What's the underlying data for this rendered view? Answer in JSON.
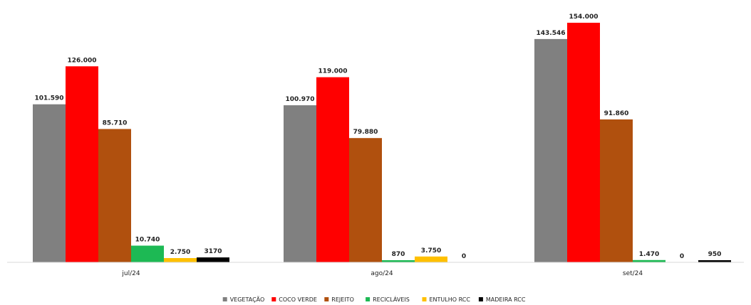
{
  "chart_data": {
    "type": "bar",
    "categories": [
      "jul/24",
      "ago/24",
      "set/24"
    ],
    "series": [
      {
        "name": "VEGETAÇÃO",
        "color": "#808080",
        "values": [
          101590,
          100970,
          143546
        ],
        "labels": [
          "101.590",
          "100.970",
          "143.546"
        ]
      },
      {
        "name": "COCO VERDE",
        "color": "#ff0000",
        "values": [
          126000,
          119000,
          154000
        ],
        "labels": [
          "126.000",
          "119.000",
          "154.000"
        ]
      },
      {
        "name": "REJEITO",
        "color": "#b0500e",
        "values": [
          85710,
          79880,
          91860
        ],
        "labels": [
          "85.710",
          "79.880",
          "91.860"
        ]
      },
      {
        "name": "RECICLÁVEIS",
        "color": "#1db954",
        "values": [
          10740,
          870,
          1470
        ],
        "labels": [
          "10.740",
          "870",
          "1.470"
        ]
      },
      {
        "name": "ENTULHO RCC",
        "color": "#ffc000",
        "values": [
          2750,
          3750,
          0
        ],
        "labels": [
          "2.750",
          "3.750",
          "0"
        ]
      },
      {
        "name": "MADEIRA RCC",
        "color": "#000000",
        "values": [
          3170,
          0,
          950
        ],
        "labels": [
          "3170",
          "0",
          "950"
        ]
      }
    ],
    "ylim": [
      0,
      154000
    ],
    "title": "",
    "xlabel": "",
    "ylabel": "",
    "legend_position": "bottom",
    "grid": false
  }
}
